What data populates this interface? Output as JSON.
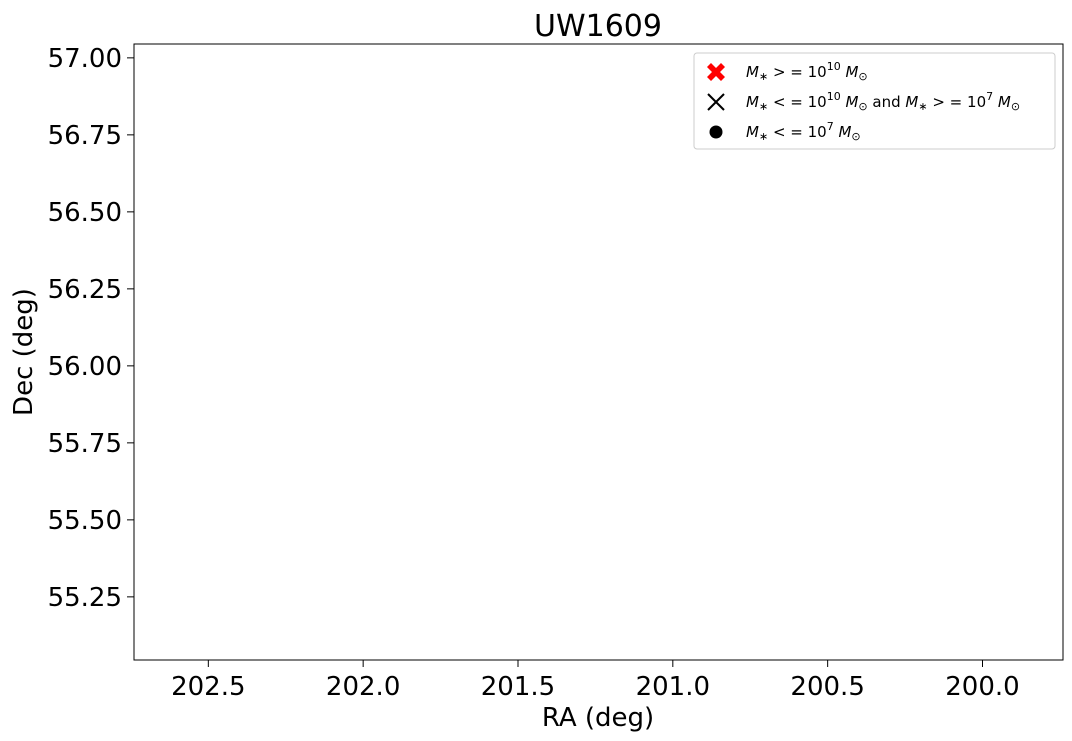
{
  "chart_data": {
    "type": "scatter",
    "title": "UW1609",
    "xlabel": "RA (deg)",
    "ylabel": "Dec (deg)",
    "xlim": [
      202.74,
      199.74
    ],
    "ylim": [
      55.045,
      57.045
    ],
    "x_ticks": [
      202.5,
      202.0,
      201.5,
      201.0,
      200.5,
      200.0
    ],
    "x_tick_labels": [
      "202.5",
      "202.0",
      "201.5",
      "201.0",
      "200.5",
      "200.0"
    ],
    "y_ticks": [
      55.25,
      55.5,
      55.75,
      56.0,
      56.25,
      56.5,
      56.75,
      57.0
    ],
    "y_tick_labels": [
      "55.25",
      "55.50",
      "55.75",
      "56.00",
      "56.25",
      "56.50",
      "56.75",
      "57.00"
    ],
    "grid": false,
    "legend_position": "upper-right",
    "legend": [
      {
        "marker": "X-filled",
        "color": "#ff0000",
        "label_parts": [
          "M",
          "∗",
          " > = 10",
          "10",
          " M",
          "⊙"
        ]
      },
      {
        "marker": "x",
        "color": "#000000",
        "label_parts": [
          "M",
          "∗",
          " < = 10",
          "10",
          " M",
          "⊙",
          " and ",
          "M",
          "∗",
          " > = 10",
          "7",
          " M",
          "⊙"
        ]
      },
      {
        "marker": "circle",
        "color": "#000000",
        "label_parts": [
          "M",
          "∗",
          " < = 10",
          "7",
          " M",
          "⊙"
        ]
      }
    ],
    "series": []
  }
}
